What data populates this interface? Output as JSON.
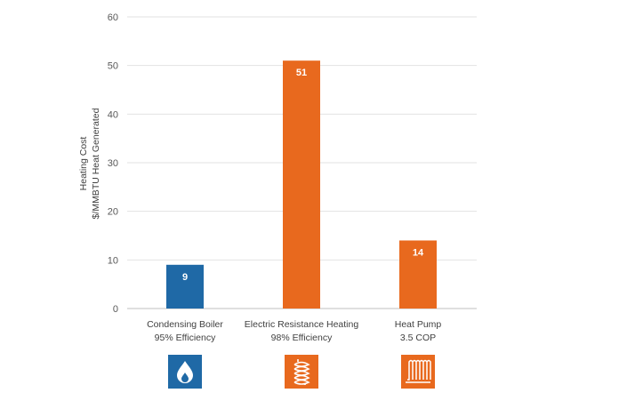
{
  "chart_data": {
    "type": "bar",
    "ylabel": [
      "Heating Cost",
      "$/MMBTU Heat Generated"
    ],
    "ylim": [
      0,
      60
    ],
    "yticks": [
      0,
      10,
      20,
      30,
      40,
      50,
      60
    ],
    "grid": true,
    "categories": [
      {
        "line1": "Condensing Boiler",
        "line2": "95% Efficiency"
      },
      {
        "line1": "Electric Resistance Heating",
        "line2": "98% Efficiency"
      },
      {
        "line1": "Heat Pump",
        "line2": "3.5 COP"
      }
    ],
    "values": [
      9,
      51,
      14
    ],
    "data_labels": [
      "9",
      "51",
      "14"
    ],
    "colors": [
      "#1f69a6",
      "#e8691e",
      "#e8691e"
    ],
    "icons": [
      "flame-icon",
      "coil-icon",
      "radiant-floor-icon"
    ]
  }
}
